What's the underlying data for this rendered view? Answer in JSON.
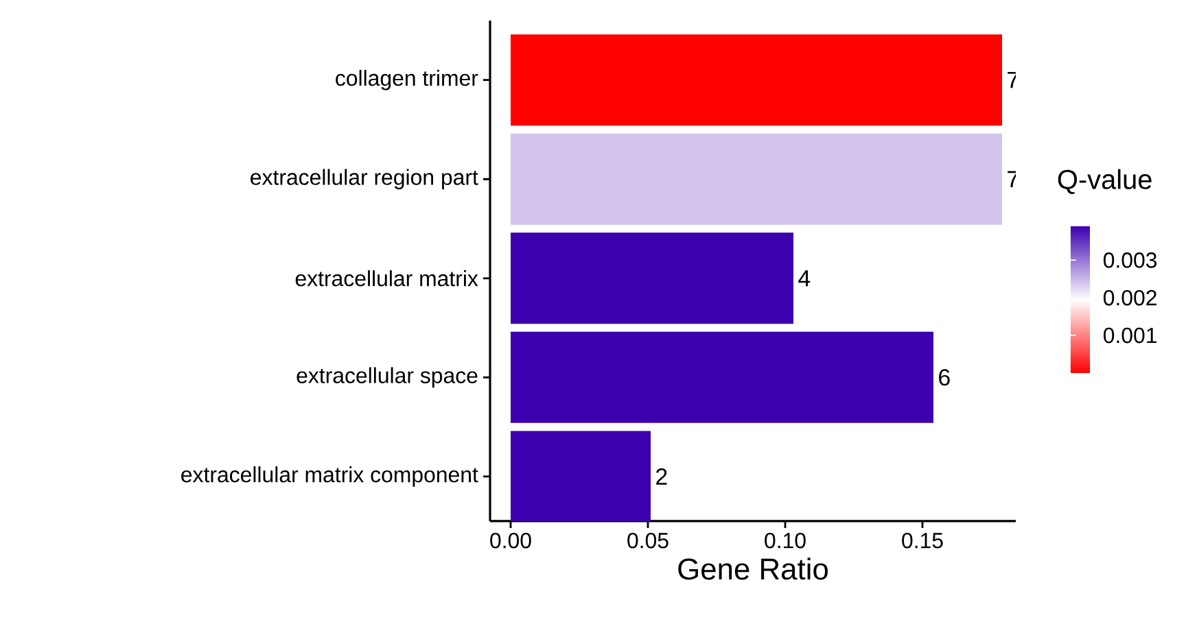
{
  "chart_data": {
    "type": "bar",
    "orientation": "horizontal",
    "categories": [
      "collagen trimer",
      "extracellular region part",
      "extracellular matrix",
      "extracellular space",
      "extracellular matrix component"
    ],
    "values": [
      0.179,
      0.179,
      0.103,
      0.154,
      0.051
    ],
    "cvalues": [
      0,
      0.0024,
      0.0039,
      0.0039,
      0.0039
    ],
    "annotations": [
      {
        "text": "7",
        "x": 0.179,
        "y": "collagen trimer"
      },
      {
        "text": "7",
        "x": 0.179,
        "y": "extracellular region part"
      },
      {
        "text": "4",
        "x": 0.103,
        "y": "extracellular matrix"
      },
      {
        "text": "6",
        "x": 0.154,
        "y": "extracellular space"
      },
      {
        "text": "2",
        "x": 0.051,
        "y": "extracellular matrix component"
      }
    ],
    "xlabel": "Gene Ratio",
    "xlim": [
      -0.0075,
      0.184
    ],
    "xticks": [
      {
        "value": 0,
        "label": "0.00"
      },
      {
        "value": 0.05,
        "label": "0.05"
      },
      {
        "value": 0.1,
        "label": "0.10"
      },
      {
        "value": 0.15,
        "label": "0.15"
      }
    ],
    "clabel": "Q-value",
    "clim": [
      0,
      0.0039
    ],
    "cticks": [
      0.001,
      0.002,
      0.003
    ]
  }
}
